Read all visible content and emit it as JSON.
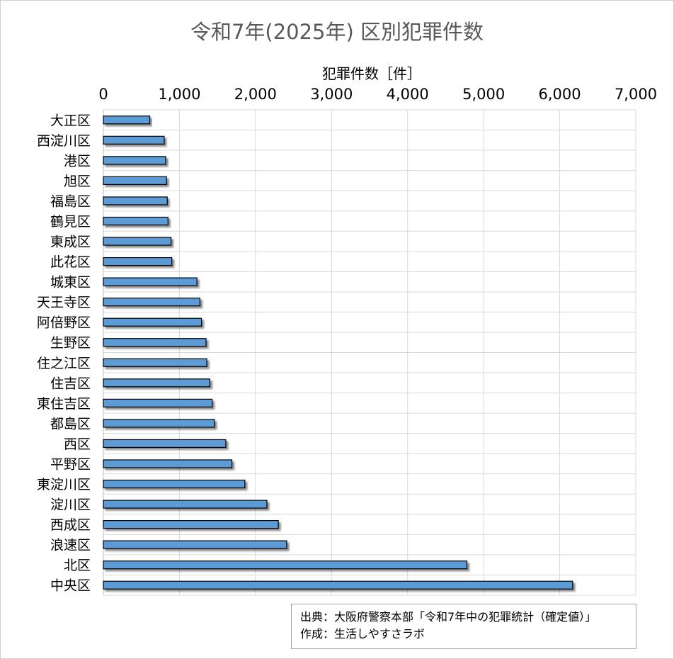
{
  "chart_data": {
    "type": "bar",
    "orientation": "horizontal",
    "title": "令和7年(2025年) 区別犯罪件数",
    "xlabel": "犯罪件数［件］",
    "ylabel": "",
    "xlim": [
      0,
      7000
    ],
    "xticks": [
      "0",
      "1,000",
      "2,000",
      "3,000",
      "4,000",
      "5,000",
      "6,000",
      "7,000"
    ],
    "grid": true,
    "categories": [
      "大正区",
      "西淀川区",
      "港区",
      "旭区",
      "福島区",
      "鶴見区",
      "東成区",
      "此花区",
      "城東区",
      "天王寺区",
      "阿倍野区",
      "生野区",
      "住之江区",
      "住吉区",
      "東住吉区",
      "都島区",
      "西区",
      "平野区",
      "東淀川区",
      "淀川区",
      "西成区",
      "浪速区",
      "北区",
      "中央区"
    ],
    "values": [
      610,
      800,
      820,
      830,
      840,
      850,
      890,
      900,
      1230,
      1270,
      1290,
      1350,
      1360,
      1400,
      1430,
      1460,
      1610,
      1690,
      1860,
      2150,
      2300,
      2410,
      4780,
      6170
    ],
    "bar_color": "#5b9bd5"
  },
  "source": {
    "line1": "出典：大阪府警察本部「令和7年中の犯罪統計（確定値）」",
    "line2": "作成：生活しやすさラボ"
  }
}
